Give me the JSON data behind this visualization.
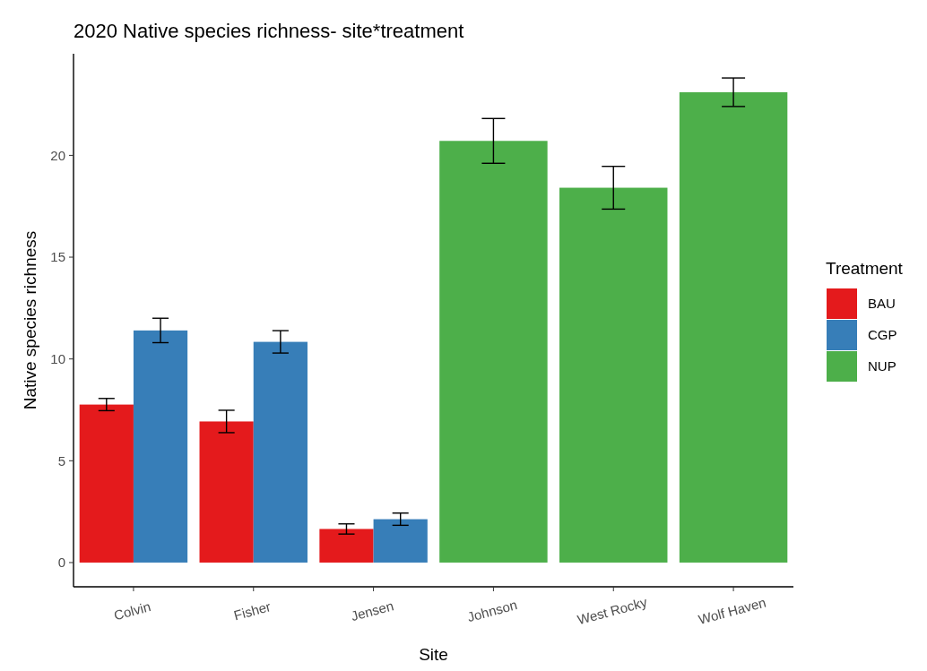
{
  "chart_data": {
    "type": "bar",
    "title": "2020 Native species richness- site*treatment",
    "xlabel": "Site",
    "ylabel": "Native species richness",
    "legend_title": "Treatment",
    "categories": [
      "Colvin",
      "Fisher",
      "Jensen",
      "Johnson",
      "West Rocky",
      "Wolf Haven"
    ],
    "series": [
      {
        "name": "BAU",
        "color": "#e41a1c",
        "values": [
          7.76,
          6.93,
          1.65,
          null,
          null,
          null
        ],
        "errors": [
          0.3,
          0.55,
          0.25,
          null,
          null,
          null
        ]
      },
      {
        "name": "CGP",
        "color": "#377eb8",
        "values": [
          11.4,
          10.84,
          2.13,
          null,
          null,
          null
        ],
        "errors": [
          0.6,
          0.55,
          0.3,
          null,
          null,
          null
        ]
      },
      {
        "name": "NUP",
        "color": "#4daf4a",
        "values": [
          null,
          null,
          null,
          20.71,
          18.41,
          23.1
        ],
        "errors": [
          null,
          null,
          null,
          1.1,
          1.05,
          0.7
        ]
      }
    ],
    "ylim": [
      -1.19,
      24.99
    ],
    "yticks": [
      0,
      5,
      10,
      15,
      20
    ],
    "grid": false,
    "legend": "right"
  }
}
